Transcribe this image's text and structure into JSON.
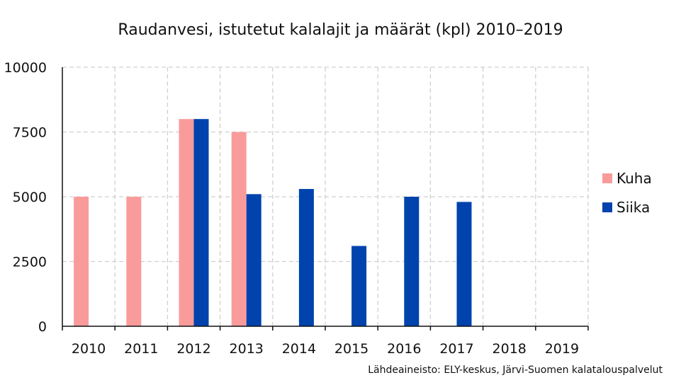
{
  "chart_data": {
    "type": "bar",
    "title": "Raudanvesi, istutetut kalalajit ja määrät (kpl) 2010–2019",
    "xlabel": "",
    "ylabel": "",
    "ylim": [
      0,
      10000
    ],
    "yticks": [
      0,
      2500,
      5000,
      7500,
      10000
    ],
    "ytick_labels": [
      "0",
      "2500",
      "5000",
      "7500",
      "10000"
    ],
    "grid": true,
    "legend_position": "right",
    "categories": [
      "2010",
      "2011",
      "2012",
      "2013",
      "2014",
      "2015",
      "2016",
      "2017",
      "2018",
      "2019"
    ],
    "series": [
      {
        "name": "Kuha",
        "color": "#f99b9b",
        "values": [
          5000,
          5000,
          8000,
          7500,
          0,
          0,
          0,
          0,
          0,
          0
        ]
      },
      {
        "name": "Siika",
        "color": "#0043ad",
        "values": [
          0,
          0,
          8000,
          5100,
          5300,
          3100,
          5000,
          4800,
          0,
          0
        ]
      }
    ],
    "source": "Lähdeaineisto: ELY-keskus, Järvi-Suomen kalatalouspalvelut"
  }
}
